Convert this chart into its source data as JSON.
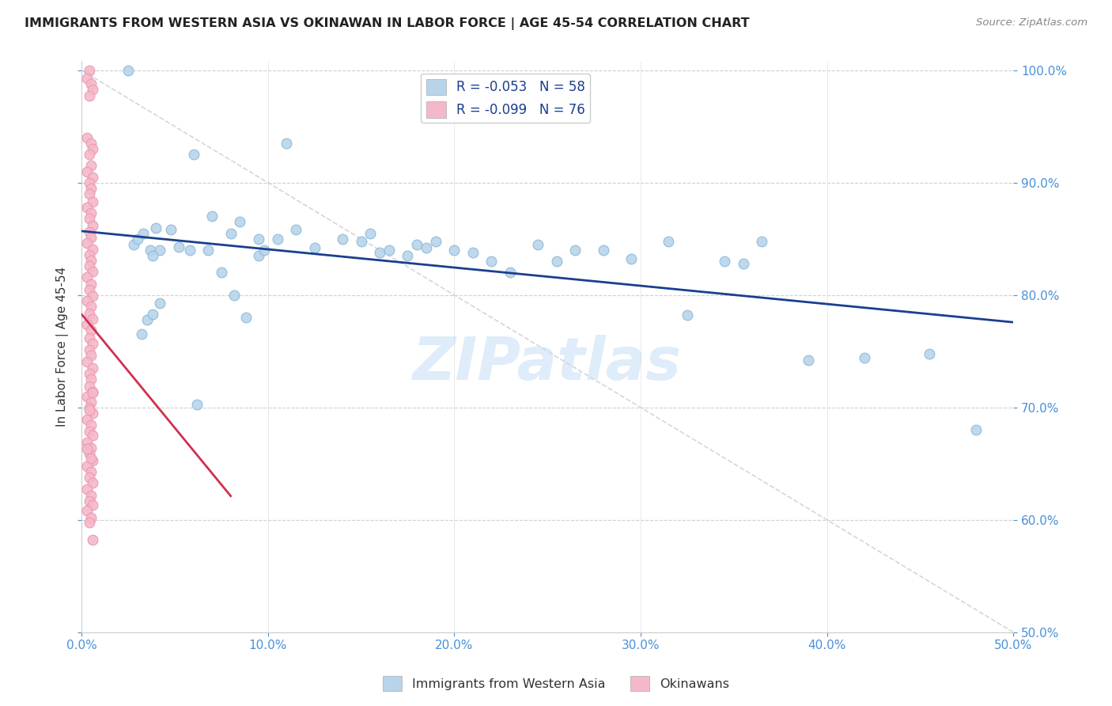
{
  "title": "IMMIGRANTS FROM WESTERN ASIA VS OKINAWAN IN LABOR FORCE | AGE 45-54 CORRELATION CHART",
  "source": "Source: ZipAtlas.com",
  "ylabel": "In Labor Force | Age 45-54",
  "xlim": [
    0.0,
    0.5
  ],
  "ylim": [
    0.5,
    1.008
  ],
  "yticks": [
    0.5,
    0.6,
    0.7,
    0.8,
    0.9,
    1.0
  ],
  "xticks": [
    0.0,
    0.1,
    0.2,
    0.3,
    0.4,
    0.5
  ],
  "legend1_label": "R = -0.053   N = 58",
  "legend2_label": "R = -0.099   N = 76",
  "blue_fill": "#b8d4ea",
  "blue_edge": "#8ab8d8",
  "pink_fill": "#f5b8c8",
  "pink_edge": "#e898b0",
  "trendline_blue": "#1a3f8f",
  "trendline_pink": "#d03050",
  "watermark": "ZIPatlas",
  "blue_x": [
    0.025,
    0.028,
    0.03,
    0.033,
    0.037,
    0.04,
    0.042,
    0.038,
    0.06,
    0.07,
    0.08,
    0.085,
    0.095,
    0.105,
    0.11,
    0.115,
    0.125,
    0.14,
    0.15,
    0.155,
    0.16,
    0.165,
    0.175,
    0.18,
    0.185,
    0.19,
    0.2,
    0.21,
    0.22,
    0.23,
    0.245,
    0.255,
    0.265,
    0.28,
    0.295,
    0.315,
    0.325,
    0.345,
    0.355,
    0.365,
    0.39,
    0.42,
    0.455,
    0.48,
    0.032,
    0.035,
    0.038,
    0.042,
    0.048,
    0.052,
    0.058,
    0.062,
    0.068,
    0.075,
    0.082,
    0.088,
    0.095,
    0.098
  ],
  "blue_y": [
    1.0,
    0.845,
    0.85,
    0.855,
    0.84,
    0.86,
    0.84,
    0.835,
    0.925,
    0.87,
    0.855,
    0.865,
    0.85,
    0.85,
    0.935,
    0.858,
    0.842,
    0.85,
    0.848,
    0.855,
    0.838,
    0.84,
    0.835,
    0.845,
    0.842,
    0.848,
    0.84,
    0.838,
    0.83,
    0.82,
    0.845,
    0.83,
    0.84,
    0.84,
    0.832,
    0.848,
    0.782,
    0.83,
    0.828,
    0.848,
    0.742,
    0.744,
    0.748,
    0.68,
    0.765,
    0.778,
    0.783,
    0.793,
    0.858,
    0.843,
    0.84,
    0.703,
    0.84,
    0.82,
    0.8,
    0.78,
    0.835,
    0.84
  ],
  "pink_x_vals": [
    0.004,
    0.003,
    0.005,
    0.006,
    0.004,
    0.003,
    0.005,
    0.006,
    0.004,
    0.005,
    0.003,
    0.006,
    0.004,
    0.005,
    0.004,
    0.006,
    0.003,
    0.005,
    0.004,
    0.006,
    0.004,
    0.005,
    0.003,
    0.006,
    0.004,
    0.005,
    0.004,
    0.006,
    0.003,
    0.005,
    0.004,
    0.006,
    0.003,
    0.005,
    0.004,
    0.006,
    0.003,
    0.005,
    0.004,
    0.006,
    0.004,
    0.005,
    0.003,
    0.006,
    0.004,
    0.005,
    0.004,
    0.006,
    0.003,
    0.005,
    0.004,
    0.006,
    0.003,
    0.005,
    0.004,
    0.006,
    0.003,
    0.005,
    0.004,
    0.006,
    0.003,
    0.005,
    0.004,
    0.006,
    0.003,
    0.005,
    0.004,
    0.006,
    0.003,
    0.005,
    0.004,
    0.006,
    0.003,
    0.005,
    0.004,
    0.006
  ],
  "pink_y_vals": [
    1.0,
    0.993,
    0.988,
    0.983,
    0.977,
    0.94,
    0.935,
    0.93,
    0.925,
    0.915,
    0.91,
    0.905,
    0.9,
    0.895,
    0.89,
    0.883,
    0.878,
    0.873,
    0.868,
    0.862,
    0.856,
    0.851,
    0.846,
    0.841,
    0.836,
    0.831,
    0.826,
    0.821,
    0.816,
    0.81,
    0.805,
    0.799,
    0.795,
    0.79,
    0.784,
    0.779,
    0.774,
    0.769,
    0.762,
    0.757,
    0.751,
    0.746,
    0.741,
    0.735,
    0.73,
    0.725,
    0.719,
    0.714,
    0.71,
    0.705,
    0.7,
    0.695,
    0.689,
    0.684,
    0.679,
    0.675,
    0.669,
    0.664,
    0.659,
    0.653,
    0.648,
    0.643,
    0.638,
    0.633,
    0.627,
    0.622,
    0.617,
    0.613,
    0.608,
    0.602,
    0.698,
    0.713,
    0.663,
    0.655,
    0.598,
    0.582
  ]
}
